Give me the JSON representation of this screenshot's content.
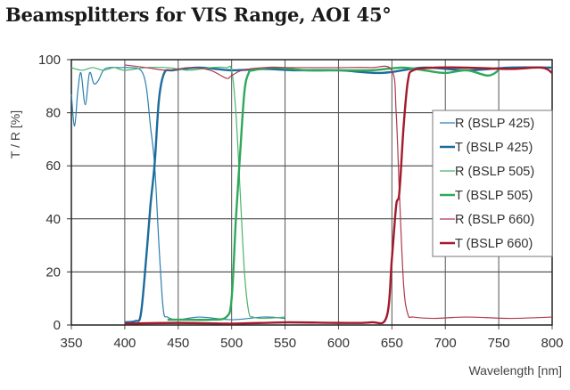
{
  "chart_data": {
    "type": "line",
    "title": "Beamsplitters for VIS Range, AOI 45°",
    "xlabel": "Wavelength [nm]",
    "ylabel": "T / R [%]",
    "xlim": [
      350,
      800
    ],
    "ylim": [
      0,
      100
    ],
    "xticks": [
      350,
      400,
      450,
      500,
      550,
      600,
      650,
      700,
      750,
      800
    ],
    "yticks": [
      0,
      20,
      40,
      60,
      80,
      100
    ],
    "grid": true,
    "legend_position": "right",
    "series": [
      {
        "name": "R (BSLP 425)",
        "color": "#2a7fae",
        "weight": "thin",
        "x": [
          350,
          353,
          356,
          359,
          363,
          367,
          371,
          375,
          380,
          385,
          395,
          405,
          415,
          420,
          424,
          428,
          432,
          436,
          440,
          450,
          470,
          500,
          530,
          550
        ],
        "y": [
          87,
          75,
          88,
          95,
          83,
          95,
          91,
          92,
          96,
          97,
          97,
          97,
          96,
          90,
          75,
          60,
          30,
          6,
          3,
          2,
          3,
          2,
          3,
          2.5
        ]
      },
      {
        "name": "T (BSLP 425)",
        "color": "#1d6b9c",
        "weight": "thick",
        "x": [
          400,
          410,
          415,
          420,
          424,
          428,
          432,
          437,
          445,
          470,
          500,
          530,
          560,
          600,
          640,
          680,
          720,
          760,
          800
        ],
        "y": [
          1,
          1.5,
          4,
          25,
          45,
          61,
          85,
          95,
          96,
          97,
          96,
          96.5,
          96,
          96,
          95,
          97,
          96,
          97,
          97
        ]
      },
      {
        "name": "R (BSLP 505)",
        "color": "#49b46a",
        "weight": "thin",
        "x": [
          350,
          360,
          370,
          380,
          390,
          400,
          420,
          440,
          460,
          480,
          495,
          500,
          504,
          508,
          512,
          516,
          520,
          530,
          550
        ],
        "y": [
          97,
          96,
          97,
          96,
          97,
          96,
          97,
          97,
          96,
          97,
          97,
          96,
          80,
          50,
          20,
          5,
          3,
          2.5,
          3
        ]
      },
      {
        "name": "T (BSLP 505)",
        "color": "#2fa85a",
        "weight": "thick",
        "x": [
          440,
          460,
          480,
          495,
          500,
          504,
          508,
          512,
          516,
          520,
          540,
          570,
          600,
          630,
          660,
          680,
          700,
          720,
          740,
          750
        ],
        "y": [
          2,
          2,
          2,
          3,
          10,
          40,
          65,
          88,
          95,
          96,
          97,
          96,
          96,
          96,
          97,
          96,
          95,
          96,
          94,
          96
        ]
      },
      {
        "name": "R (BSLP 660)",
        "color": "#b0384c",
        "weight": "thin",
        "x": [
          400,
          420,
          440,
          460,
          480,
          495,
          500,
          510,
          530,
          560,
          600,
          630,
          650,
          654,
          657,
          661,
          665,
          670,
          690,
          720,
          760,
          800
        ],
        "y": [
          98,
          97,
          96,
          97,
          96,
          93,
          94,
          96,
          97,
          97,
          97,
          97,
          96,
          80,
          50,
          15,
          4,
          3,
          2.5,
          3,
          2.5,
          3
        ]
      },
      {
        "name": "T (BSLP 660)",
        "color": "#a31a2c",
        "weight": "thick",
        "x": [
          400,
          450,
          500,
          550,
          600,
          630,
          645,
          650,
          654,
          657,
          661,
          665,
          670,
          690,
          720,
          760,
          790,
          800
        ],
        "y": [
          0.5,
          0.8,
          0.5,
          1,
          0.8,
          1,
          3,
          25,
          45,
          50,
          75,
          92,
          96,
          97,
          97,
          96.5,
          97,
          95
        ]
      }
    ]
  }
}
